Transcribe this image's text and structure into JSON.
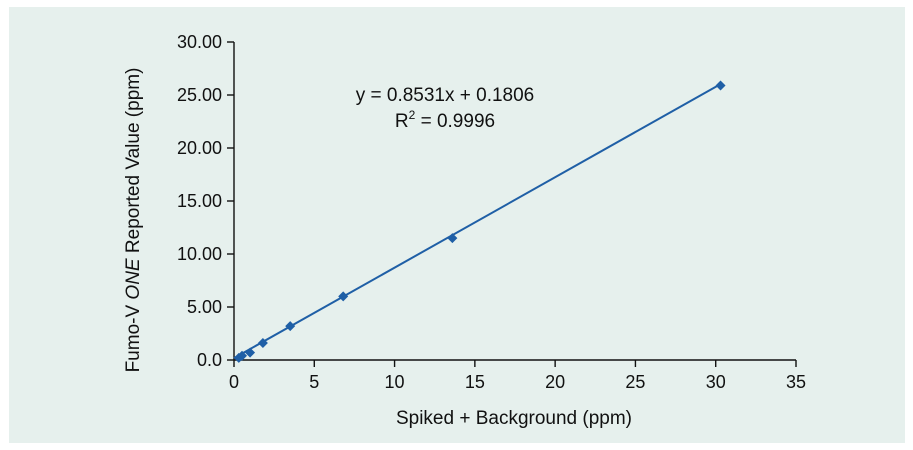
{
  "chart_data": {
    "type": "scatter",
    "xlabel": "Spiked + Background (ppm)",
    "ylabel_prefix": "Fumo-V ",
    "ylabel_italic": "ONE",
    "ylabel_suffix": " Reported Value (ppm)",
    "xlim": [
      0,
      35
    ],
    "ylim": [
      0,
      30
    ],
    "x_ticks": [
      "0",
      "5",
      "10",
      "15",
      "20",
      "25",
      "30",
      "35"
    ],
    "x_tick_values": [
      0,
      5,
      10,
      15,
      20,
      25,
      30,
      35
    ],
    "y_ticks": [
      "0.0",
      "5.00",
      "10.00",
      "15.00",
      "20.00",
      "25.00",
      "30.00"
    ],
    "y_tick_values": [
      0,
      5,
      10,
      15,
      20,
      25,
      30
    ],
    "series": [
      {
        "x": [
          0.3,
          0.5,
          1.0,
          1.8,
          3.5,
          6.8,
          13.6,
          30.3
        ],
        "y": [
          0.2,
          0.4,
          0.7,
          1.6,
          3.2,
          6.0,
          11.5,
          25.9
        ]
      }
    ],
    "trendline": {
      "slope": 0.8531,
      "intercept": 0.1806,
      "x_range": [
        0,
        30.3
      ]
    },
    "equation_text": "y = 0.8531x + 0.1806",
    "r2_prefix": "R",
    "r2_sup": "2",
    "r2_value_text": " = 0.9996",
    "grid": false,
    "legend": "none",
    "colors": {
      "series": "#1f5fa6",
      "background": "#e6f0ed"
    }
  }
}
